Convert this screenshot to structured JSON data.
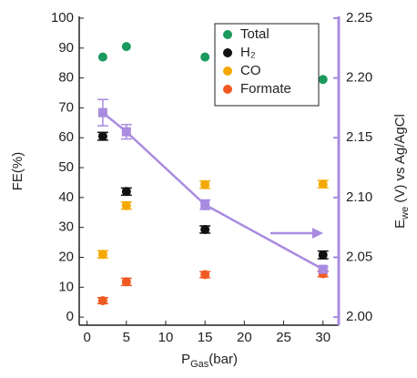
{
  "chart_data": {
    "type": "scatter",
    "x_label": {
      "text": "P",
      "sub": "Gas",
      "suffix": "(bar)"
    },
    "y_label": "FE(%)",
    "y2_label": {
      "text": "E",
      "sub": "we",
      "suffix": " (V) vs Ag/AgCl"
    },
    "xlim": [
      -1,
      32
    ],
    "xticks": [
      0,
      5,
      10,
      15,
      20,
      25,
      30
    ],
    "ylim": [
      -2.7,
      100.6
    ],
    "yticks": [
      0,
      10,
      20,
      30,
      40,
      50,
      60,
      70,
      80,
      90,
      100
    ],
    "y2lim": [
      1.99325,
      2.2515
    ],
    "y2ticks": [
      {
        "value": 2.0,
        "label": "2.00"
      },
      {
        "value": 2.05,
        "label": "2.05"
      },
      {
        "value": 2.1,
        "label": "2.10"
      },
      {
        "value": 2.15,
        "label": "2.15"
      },
      {
        "value": 2.2,
        "label": "2.20"
      },
      {
        "value": 2.25,
        "label": "2.25"
      }
    ],
    "legend": "upper right",
    "series": [
      {
        "name": "Total",
        "color": "#1a9a5c",
        "x": [
          2,
          5,
          15,
          30
        ],
        "values": [
          87,
          90.5,
          87,
          79.5
        ]
      },
      {
        "name": "H₂",
        "color": "#111111",
        "x": [
          2,
          5,
          15,
          30
        ],
        "values": [
          60.5,
          42,
          29.3,
          20.8
        ],
        "errors": [
          1.3,
          1.2,
          1.2,
          1.3
        ]
      },
      {
        "name": "CO",
        "color": "#f5a800",
        "x": [
          2,
          5,
          15,
          30
        ],
        "values": [
          21,
          37.3,
          44.3,
          44.5
        ],
        "errors": [
          1.2,
          1.2,
          1.2,
          1.2
        ]
      },
      {
        "name": "Formate",
        "color": "#f05a22",
        "x": [
          2,
          5,
          15,
          30
        ],
        "values": [
          5.5,
          11.8,
          14.2,
          14.5
        ],
        "errors": [
          1,
          1.2,
          1,
          1
        ]
      },
      {
        "color": "#a98be0",
        "axis": "y2",
        "line": true,
        "x": [
          2,
          5,
          15,
          30
        ],
        "values": [
          2.171,
          2.155,
          2.094,
          2.04
        ],
        "errors": [
          0.011,
          0.006,
          0.004,
          0.002
        ]
      }
    ]
  }
}
